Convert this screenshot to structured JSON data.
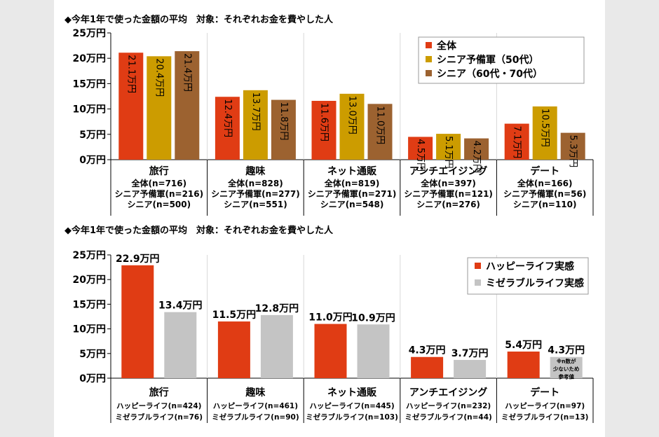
{
  "chart_data": [
    {
      "type": "bar",
      "title": "◆今年1年で使った金額の平均　対象：それぞれお金を費やした人",
      "categories": [
        "旅行",
        "趣味",
        "ネット通販",
        "アンチエイジング",
        "デート"
      ],
      "yticks": [
        "0万円",
        "5万円",
        "10万円",
        "15万円",
        "20万円",
        "25万円"
      ],
      "ylim": [
        0,
        25
      ],
      "series": [
        {
          "name": "全体",
          "color": "#e03c14",
          "values": [
            21.1,
            12.4,
            11.6,
            4.5,
            7.1
          ],
          "labels": [
            "21.1万円",
            "12.4万円",
            "11.6万円",
            "4.5万円",
            "7.1万円"
          ]
        },
        {
          "name": "シニア予備軍（50代）",
          "color": "#cc9c00",
          "values": [
            20.4,
            13.7,
            13.0,
            5.1,
            10.5
          ],
          "labels": [
            "20.4万円",
            "13.7万円",
            "13.0万円",
            "5.1万円",
            "10.5万円"
          ]
        },
        {
          "name": "シニア（60代・70代）",
          "color": "#9c6230",
          "values": [
            21.4,
            11.8,
            11.0,
            4.2,
            5.3
          ],
          "labels": [
            "21.4万円",
            "11.8万円",
            "11.0万円",
            "4.2万円",
            "5.3万円"
          ]
        }
      ],
      "samples": [
        [
          "全体(n=716)",
          "シニア予備軍(n=216)",
          "シニア(n=500)"
        ],
        [
          "全体(n=828)",
          "シニア予備軍(n=277)",
          "シニア(n=551)"
        ],
        [
          "全体(n=819)",
          "シニア予備軍(n=271)",
          "シニア(n=548)"
        ],
        [
          "全体(n=397)",
          "シニア予備軍(n=121)",
          "シニア(n=276)"
        ],
        [
          "全体(n=166)",
          "シニア予備軍(n=56)",
          "シニア(n=110)"
        ]
      ],
      "legend": "top-right"
    },
    {
      "type": "bar",
      "title": "◆今年1年で使った金額の平均　対象：それぞれお金を費やした人",
      "categories": [
        "旅行",
        "趣味",
        "ネット通販",
        "アンチエイジング",
        "デート"
      ],
      "yticks": [
        "0万円",
        "5万円",
        "10万円",
        "15万円",
        "20万円",
        "25万円"
      ],
      "ylim": [
        0,
        25
      ],
      "series": [
        {
          "name": "ハッピーライフ実感",
          "color": "#e03c14",
          "values": [
            22.9,
            11.5,
            11.0,
            4.3,
            5.4
          ],
          "labels": [
            "22.9万円",
            "11.5万円",
            "11.0万円",
            "4.3万円",
            "5.4万円"
          ]
        },
        {
          "name": "ミゼラブルライフ実感",
          "color": "#c4c4c4",
          "values": [
            13.4,
            12.8,
            10.9,
            3.7,
            4.3
          ],
          "labels": [
            "13.4万円",
            "12.8万円",
            "10.9万円",
            "3.7万円",
            "4.3万円"
          ]
        }
      ],
      "samples": [
        [
          "ハッピーライフ(n=424)",
          "ミゼラブルライフ(n=76)"
        ],
        [
          "ハッピーライフ(n=461)",
          "ミゼラブルライフ(n=90)"
        ],
        [
          "ハッピーライフ(n=445)",
          "ミゼラブルライフ(n=103)"
        ],
        [
          "ハッピーライフ(n=232)",
          "ミゼラブルライフ(n=44)"
        ],
        [
          "ハッピーライフ(n=97)",
          "ミゼラブルライフ(n=13)"
        ]
      ],
      "note": [
        "※n数が",
        "少ないため",
        "参考値"
      ],
      "legend": "top-right"
    }
  ]
}
